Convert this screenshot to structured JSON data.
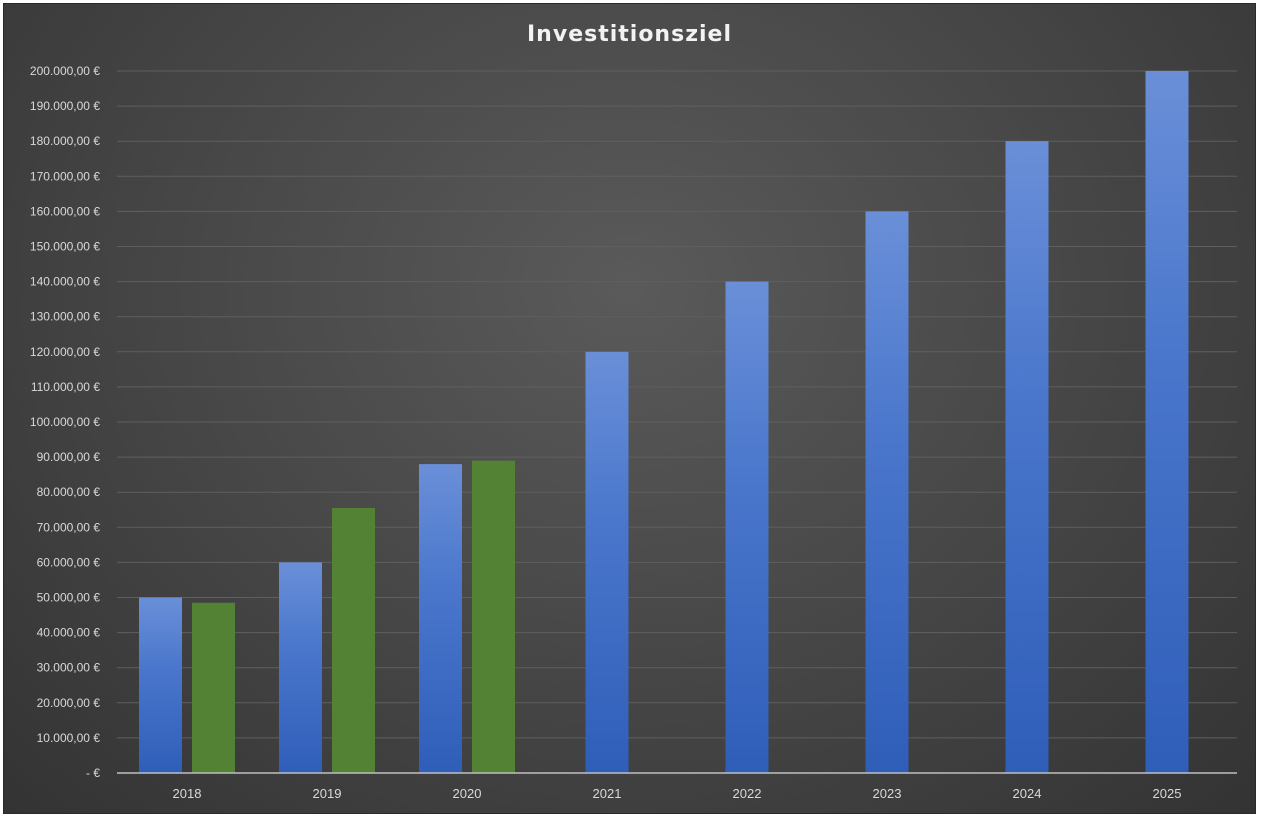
{
  "chart_data": {
    "type": "bar",
    "title": "Investitionsziel",
    "categories": [
      "2018",
      "2019",
      "2020",
      "2021",
      "2022",
      "2023",
      "2024",
      "2025"
    ],
    "series": [
      {
        "values": [
          50000,
          60000,
          88000,
          120000,
          140000,
          160000,
          180000,
          200000
        ],
        "color": "#4472c4"
      },
      {
        "values": [
          48500,
          75500,
          89000,
          null,
          null,
          null,
          null,
          null
        ],
        "color": "#548235"
      }
    ],
    "ylim": [
      0,
      200000
    ],
    "ytick_step": 10000,
    "ytick_labels": [
      "-  €",
      "10.000,00 €",
      "20.000,00 €",
      "30.000,00 €",
      "40.000,00 €",
      "50.000,00 €",
      "60.000,00 €",
      "70.000,00 €",
      "80.000,00 €",
      "90.000,00 €",
      "100.000,00 €",
      "110.000,00 €",
      "120.000,00 €",
      "130.000,00 €",
      "140.000,00 €",
      "150.000,00 €",
      "160.000,00 €",
      "170.000,00 €",
      "180.000,00 €",
      "190.000,00 €",
      "200.000,00 €"
    ],
    "grid": true,
    "legend": "none",
    "colors": {
      "background": "#404040",
      "gridline": "#5f5f5f",
      "axis": "#bfbfbf",
      "text": "#d9d9d9"
    }
  }
}
